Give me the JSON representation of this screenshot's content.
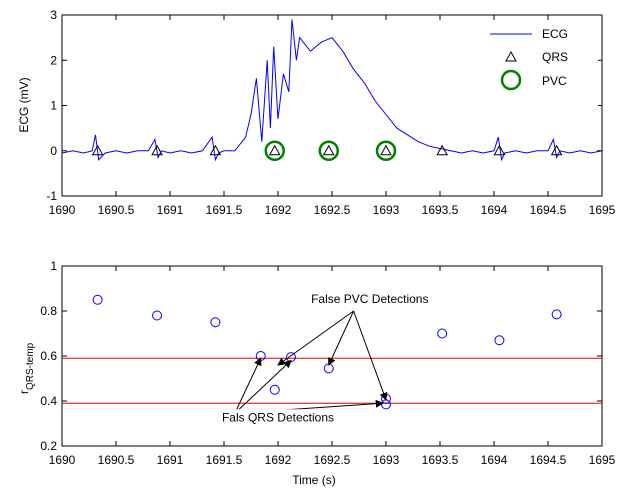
{
  "chart_data": [
    {
      "type": "line",
      "title": "",
      "xlabel": "",
      "ylabel": "ECG (mV)",
      "xlim": [
        1690,
        1695
      ],
      "ylim": [
        -1,
        3
      ],
      "xticks": [
        1690,
        1690.5,
        1691,
        1691.5,
        1692,
        1692.5,
        1693,
        1693.5,
        1694,
        1694.5,
        1695
      ],
      "xtick_labels": [
        "1690",
        "1690.5",
        "1691",
        "1691.5",
        "1692",
        "1692.5",
        "1693",
        "1693.5",
        "1694",
        "1694.5",
        "1695"
      ],
      "yticks": [
        -1,
        0,
        1,
        2,
        3
      ],
      "ytick_labels": [
        "-1",
        "0",
        "1",
        "2",
        "3"
      ],
      "grid": false,
      "legend_position": "top-right",
      "series": [
        {
          "name": "ECG",
          "kind": "line",
          "color": "#0000ff",
          "x": [
            1690,
            1690.1,
            1690.2,
            1690.28,
            1690.31,
            1690.34,
            1690.4,
            1690.5,
            1690.6,
            1690.7,
            1690.8,
            1690.86,
            1690.89,
            1690.92,
            1691.0,
            1691.1,
            1691.2,
            1691.3,
            1691.39,
            1691.42,
            1691.45,
            1691.5,
            1691.6,
            1691.7,
            1691.75,
            1691.8,
            1691.85,
            1691.9,
            1691.93,
            1691.96,
            1692.0,
            1692.05,
            1692.1,
            1692.13,
            1692.17,
            1692.2,
            1692.3,
            1692.4,
            1692.5,
            1692.6,
            1692.7,
            1692.8,
            1692.9,
            1693.0,
            1693.1,
            1693.2,
            1693.3,
            1693.4,
            1693.5,
            1693.6,
            1693.7,
            1693.8,
            1693.9,
            1694.0,
            1694.04,
            1694.07,
            1694.1,
            1694.2,
            1694.3,
            1694.4,
            1694.5,
            1694.55,
            1694.58,
            1694.61,
            1694.7,
            1694.8,
            1694.9,
            1695.0
          ],
          "y": [
            -0.05,
            0.0,
            -0.05,
            0.0,
            0.35,
            -0.2,
            -0.05,
            0.0,
            -0.05,
            0.0,
            0.0,
            0.25,
            -0.15,
            0.0,
            -0.05,
            0.0,
            -0.05,
            0.0,
            0.3,
            -0.2,
            -0.05,
            0.0,
            0.0,
            0.3,
            0.8,
            1.6,
            0.2,
            2.0,
            0.5,
            2.3,
            0.7,
            1.7,
            1.3,
            2.9,
            2.0,
            2.5,
            2.2,
            2.4,
            2.5,
            2.2,
            1.8,
            1.5,
            1.1,
            0.8,
            0.5,
            0.35,
            0.2,
            0.1,
            0.05,
            0.0,
            -0.05,
            0.0,
            -0.05,
            0.0,
            0.3,
            -0.2,
            -0.05,
            0.0,
            -0.05,
            0.0,
            0.0,
            0.25,
            -0.15,
            0.0,
            -0.05,
            0.0,
            -0.05,
            0.0
          ]
        },
        {
          "name": "QRS",
          "kind": "triangle-marker",
          "color": "#000000",
          "x": [
            1690.33,
            1690.88,
            1691.42,
            1691.97,
            1692.47,
            1693.0,
            1693.52,
            1694.05,
            1694.58
          ],
          "y": [
            0,
            0,
            0,
            0,
            0,
            0,
            0,
            0,
            0
          ]
        },
        {
          "name": "PVC",
          "kind": "circle-marker",
          "color": "#008000",
          "x": [
            1691.97,
            1692.47,
            1693.0
          ],
          "y": [
            0,
            0,
            0
          ]
        }
      ]
    },
    {
      "type": "scatter",
      "title": "",
      "xlabel": "Time (s)",
      "ylabel": "r",
      "ylabel_subscript": "QRS-temp",
      "xlim": [
        1690,
        1695
      ],
      "ylim": [
        0.2,
        1
      ],
      "xticks": [
        1690,
        1690.5,
        1691,
        1691.5,
        1692,
        1692.5,
        1693,
        1693.5,
        1694,
        1694.5,
        1695
      ],
      "xtick_labels": [
        "1690",
        "1690.5",
        "1691",
        "1691.5",
        "1692",
        "1692.5",
        "1693",
        "1693.5",
        "1694",
        "1694.5",
        "1695"
      ],
      "yticks": [
        0.2,
        0.4,
        0.6,
        0.8,
        1
      ],
      "ytick_labels": [
        "0.2",
        "0.4",
        "0.6",
        "0.8",
        "1"
      ],
      "grid": false,
      "series": [
        {
          "kind": "circle-marker",
          "color": "#0000ff",
          "x": [
            1690.33,
            1690.88,
            1691.42,
            1691.84,
            1691.97,
            1692.12,
            1692.47,
            1693.0,
            1693.0,
            1693.52,
            1694.05,
            1694.58
          ],
          "y": [
            0.85,
            0.78,
            0.75,
            0.6,
            0.45,
            0.595,
            0.545,
            0.41,
            0.385,
            0.7,
            0.67,
            0.785
          ]
        }
      ],
      "hlines": [
        {
          "y": 0.59,
          "color": "#e00000"
        },
        {
          "y": 0.39,
          "color": "#e00000"
        }
      ],
      "annotations": [
        {
          "text": "False PVC Detections",
          "text_x": 1692.85,
          "text_y": 0.835,
          "origin_x": 1692.7,
          "origin_y": 0.8,
          "targets": [
            [
              1692.0,
              0.56
            ],
            [
              1692.47,
              0.56
            ],
            [
              1693.0,
              0.405
            ]
          ]
        },
        {
          "text": "Fals QRS Detections",
          "text_x": 1692.0,
          "text_y": 0.31,
          "origin_x": 1691.6,
          "origin_y": 0.345,
          "targets": [
            [
              1691.84,
              0.59
            ],
            [
              1692.12,
              0.58
            ],
            [
              1692.97,
              0.39
            ]
          ]
        }
      ]
    }
  ]
}
